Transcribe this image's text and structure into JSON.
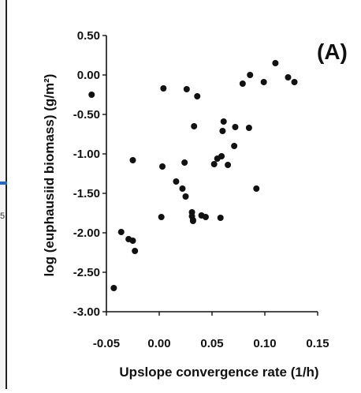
{
  "page": {
    "edge_digit": "5",
    "colors": {
      "ink": "#111111",
      "accent_strip": "#2a63c9"
    }
  },
  "chart_data": {
    "type": "scatter",
    "title": "",
    "panel_label": "(A)",
    "xlabel": "Upslope convergence rate (1/h)",
    "ylabel": "log (euphausiid biomass) (g/m²)",
    "xlim": [
      -0.05,
      0.15
    ],
    "ylim": [
      -3.0,
      0.5
    ],
    "xticks": [
      -0.05,
      0.0,
      0.05,
      0.1,
      0.15
    ],
    "xtick_labels": [
      "-0.05",
      "0.00",
      "0.05",
      "0.10",
      "0.15"
    ],
    "yticks": [
      0.5,
      0.0,
      -0.5,
      -1.0,
      -1.5,
      -2.0,
      -2.5,
      -3.0
    ],
    "ytick_labels": [
      "0.50",
      "0.00",
      "-0.50",
      "-1.00",
      "-1.50",
      "-2.00",
      "-2.50",
      "-3.00"
    ],
    "grid": false,
    "legend": "none",
    "x": [
      -0.064,
      -0.043,
      -0.036,
      -0.029,
      -0.025,
      -0.025,
      -0.023,
      0.002,
      0.003,
      0.004,
      0.016,
      0.022,
      0.024,
      0.025,
      0.026,
      0.031,
      0.031,
      0.032,
      0.032,
      0.033,
      0.036,
      0.04,
      0.044,
      0.052,
      0.055,
      0.058,
      0.059,
      0.06,
      0.061,
      0.065,
      0.071,
      0.072,
      0.079,
      0.085,
      0.086,
      0.092,
      0.099,
      0.11,
      0.122,
      0.128
    ],
    "y": [
      -0.25,
      -2.7,
      -1.99,
      -2.08,
      -1.08,
      -2.1,
      -2.23,
      -1.8,
      -1.16,
      -0.17,
      -1.35,
      -1.44,
      -1.11,
      -1.54,
      -0.18,
      -1.74,
      -1.79,
      -1.84,
      -1.85,
      -0.65,
      -0.27,
      -1.78,
      -1.8,
      -1.13,
      -1.06,
      -1.81,
      -1.03,
      -0.71,
      -0.59,
      -1.14,
      -0.9,
      -0.66,
      -0.11,
      -0.67,
      0.0,
      -1.44,
      -0.09,
      0.15,
      -0.03,
      -0.09
    ],
    "colors": {
      "points": "#111111",
      "axes": "#111111"
    }
  }
}
